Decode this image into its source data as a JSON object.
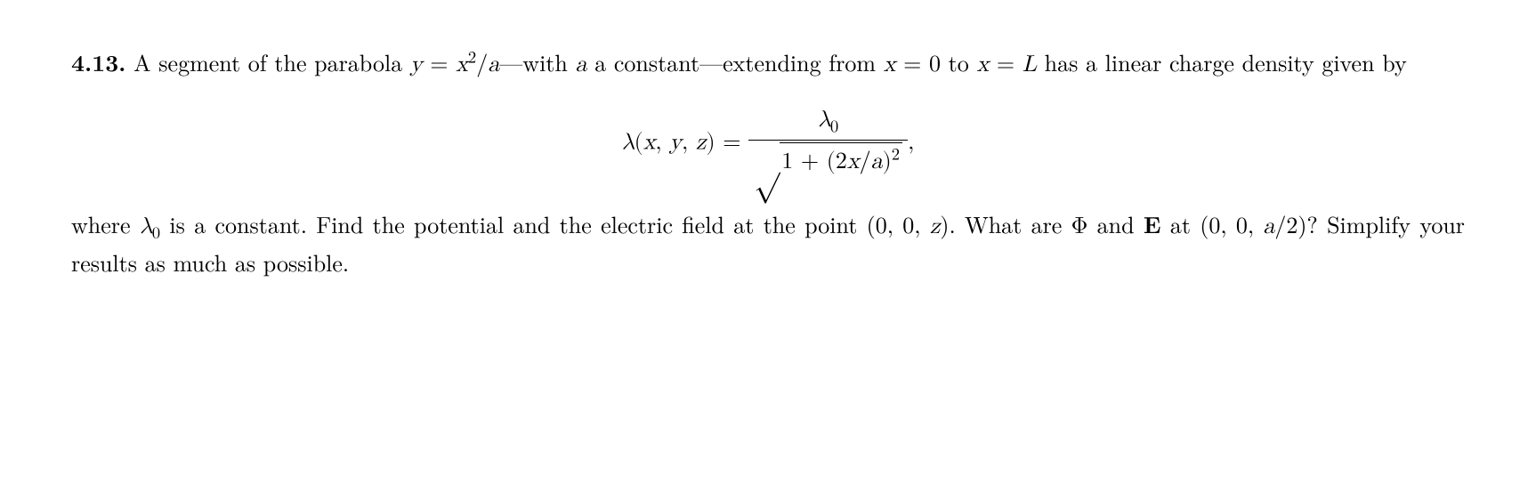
{
  "problem": {
    "number": "4.13.",
    "intro_1": "A segment of the parabola ",
    "y_eq": "y",
    "eq_sign1": " = ",
    "x2_over_a_x": "x",
    "x2_over_a_sup": "2",
    "x2_over_a_slash": "/",
    "x2_over_a_a": "a",
    "dash1": "—with ",
    "a_const": "a",
    "const_txt": " a constant—extending from ",
    "x_var1": "x",
    "eq0": " = 0 to ",
    "x_var2": "x",
    "eqL": " = ",
    "L_var": "L",
    "has_txt": " has a linear charge density given by",
    "lambda": "λ",
    "args_open": "(",
    "arg_x": "x",
    "comma1": ", ",
    "arg_y": "y",
    "comma2": ", ",
    "arg_z": "z",
    "args_close": ") = ",
    "numer_lambda": "λ",
    "numer_sub": "0",
    "denom_one": "1 + (2",
    "denom_x": "x",
    "denom_slash": "/",
    "denom_a": "a",
    "denom_close": ")",
    "denom_sup": "2",
    "trailing_comma": ",",
    "where_txt": "where ",
    "lambda0_l": "λ",
    "lambda0_sub": "0",
    "is_const": " is a constant.  Find the potential and the electric field at the point (0, 0, ",
    "z_var": "z",
    "close1": ").  What are Φ and ",
    "E_bold": "E",
    "at_txt": " at (0, 0, ",
    "a_var2": "a",
    "half": "/2)?  Simplify your results as much as possible."
  },
  "styling": {
    "font_size_pt": 26,
    "text_color": "#000000",
    "background_color": "#ffffff",
    "line_height": 1.5,
    "font_family": "Computer Modern / Latin Modern serif"
  }
}
